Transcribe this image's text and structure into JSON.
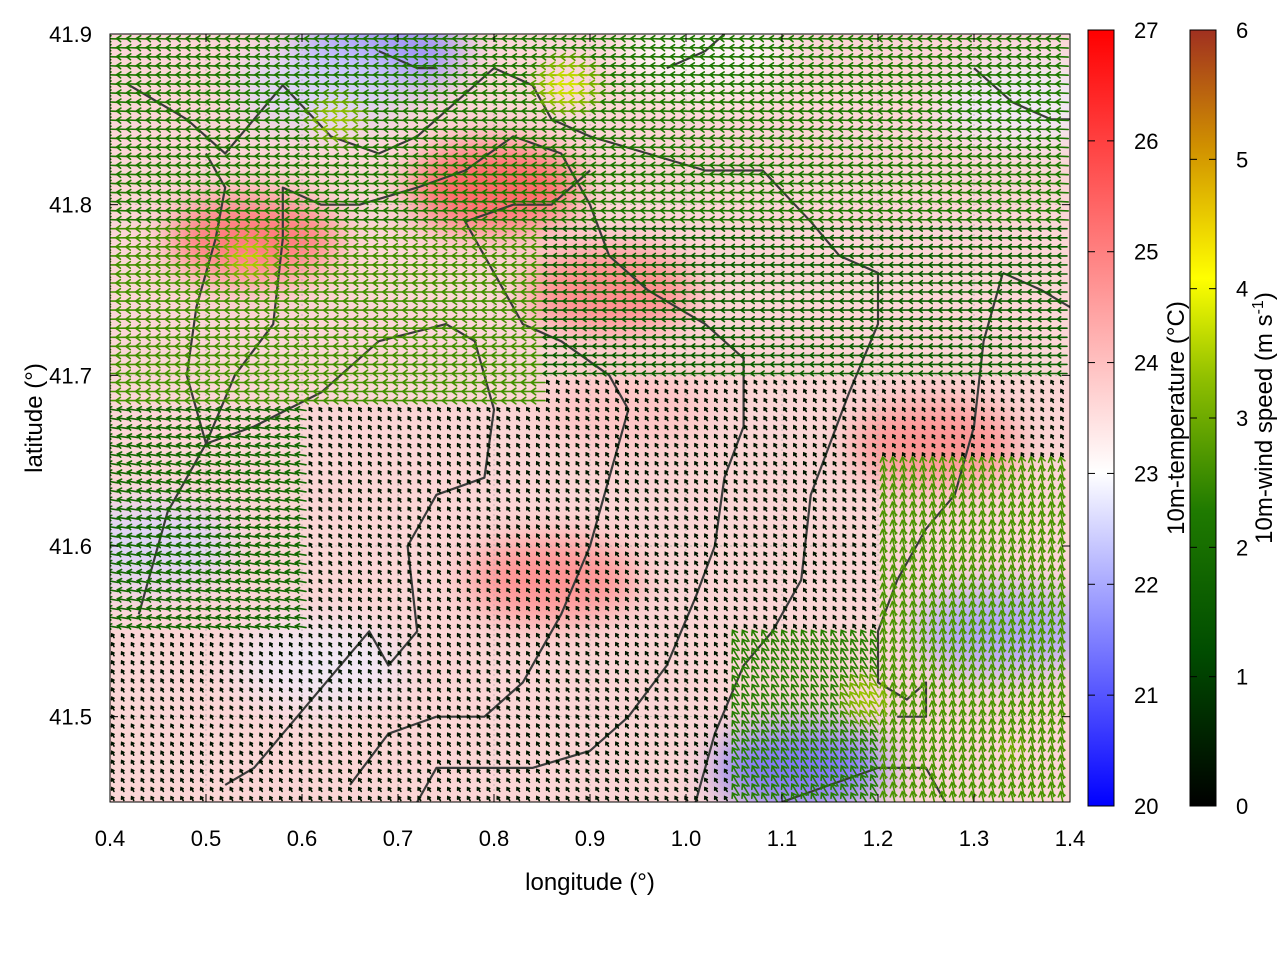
{
  "chart_data": {
    "type": "heatmap",
    "title": "",
    "xlabel": "longitude (°)",
    "ylabel": "latitude (°)",
    "xlim": [
      0.4,
      1.4
    ],
    "ylim": [
      41.45,
      41.9
    ],
    "xticks": [
      "0.4",
      "0.5",
      "0.6",
      "0.7",
      "0.8",
      "0.9",
      "1.0",
      "1.1",
      "1.2",
      "1.3",
      "1.4"
    ],
    "xtick_values": [
      0.4,
      0.5,
      0.6,
      0.7,
      0.8,
      0.9,
      1.0,
      1.1,
      1.2,
      1.3,
      1.4
    ],
    "yticks": [
      "41.5",
      "41.6",
      "41.7",
      "41.8",
      "41.9"
    ],
    "ytick_values": [
      41.5,
      41.6,
      41.7,
      41.8,
      41.9
    ],
    "grid": true,
    "temperature_colorbar": {
      "label": "10m-temperature (°C)",
      "range": [
        20,
        27
      ],
      "ticks": [
        "20",
        "21",
        "22",
        "23",
        "24",
        "25",
        "26",
        "27"
      ],
      "tick_values": [
        20,
        21,
        22,
        23,
        24,
        25,
        26,
        27
      ],
      "colors": [
        "#0000ff",
        "#ffffff",
        "#ff0000"
      ]
    },
    "wind_colorbar": {
      "label_main": "10m-wind speed (m s",
      "label_sup": "-1",
      "label_end": ")",
      "range": [
        0,
        6
      ],
      "ticks": [
        "0",
        "1",
        "2",
        "3",
        "4",
        "5",
        "6"
      ],
      "tick_values": [
        0,
        1,
        2,
        3,
        4,
        5,
        6
      ],
      "colors": [
        "#000000",
        "#004d00",
        "#2e8b00",
        "#7fbf00",
        "#ffff00",
        "#d4a000",
        "#a03020"
      ]
    },
    "temperature_field_anomalies": [
      {
        "lon": 0.68,
        "lat": 41.89,
        "temp": 21.5
      },
      {
        "lon": 0.62,
        "lat": 41.87,
        "temp": 22.5
      },
      {
        "lon": 0.44,
        "lat": 41.6,
        "temp": 22.5
      },
      {
        "lon": 0.62,
        "lat": 41.53,
        "temp": 22.8
      },
      {
        "lon": 0.8,
        "lat": 41.81,
        "temp": 26.0
      },
      {
        "lon": 0.55,
        "lat": 41.78,
        "temp": 25.5
      },
      {
        "lon": 0.92,
        "lat": 41.75,
        "temp": 25.2
      },
      {
        "lon": 0.86,
        "lat": 41.58,
        "temp": 25.0
      },
      {
        "lon": 1.12,
        "lat": 41.47,
        "temp": 21.0
      },
      {
        "lon": 1.33,
        "lat": 41.55,
        "temp": 21.8
      },
      {
        "lon": 1.35,
        "lat": 41.86,
        "temp": 22.8
      },
      {
        "lon": 1.02,
        "lat": 41.89,
        "temp": 23.0
      },
      {
        "lon": 0.94,
        "lat": 41.68,
        "temp": 24.0
      },
      {
        "lon": 1.26,
        "lat": 41.66,
        "temp": 25.0
      }
    ],
    "wind_regions": [
      {
        "lon_min": 0.4,
        "lon_max": 1.4,
        "lat_min": 41.79,
        "lat_max": 41.9,
        "u": -2.2,
        "v": 0.1
      },
      {
        "lon_min": 0.4,
        "lon_max": 0.85,
        "lat_min": 41.68,
        "lat_max": 41.79,
        "u": -2.6,
        "v": 0.0
      },
      {
        "lon_min": 0.85,
        "lon_max": 1.4,
        "lat_min": 41.7,
        "lat_max": 41.79,
        "u": -1.6,
        "v": 0.0
      },
      {
        "lon_min": 0.4,
        "lon_max": 0.6,
        "lat_min": 41.55,
        "lat_max": 41.68,
        "u": -1.8,
        "v": 0.3
      },
      {
        "lon_min": 1.2,
        "lon_max": 1.4,
        "lat_min": 41.45,
        "lat_max": 41.65,
        "u": -0.6,
        "v": 2.6
      },
      {
        "lon_min": 1.05,
        "lon_max": 1.2,
        "lat_min": 41.45,
        "lat_max": 41.55,
        "u": -1.2,
        "v": 2.0
      },
      {
        "lon_min": 0.6,
        "lon_max": 1.2,
        "lat_min": 41.45,
        "lat_max": 41.68,
        "u": -0.2,
        "v": 0.3
      }
    ],
    "wind_maxima": [
      {
        "lon": 0.55,
        "lat": 41.77,
        "speed": 3.6
      },
      {
        "lon": 0.64,
        "lat": 41.85,
        "speed": 3.4
      },
      {
        "lon": 0.88,
        "lat": 41.87,
        "speed": 3.8
      },
      {
        "lon": 1.19,
        "lat": 41.51,
        "speed": 3.4
      },
      {
        "lon": 1.34,
        "lat": 41.48,
        "speed": 3.0
      }
    ],
    "contours": [
      [
        [
          0.42,
          41.87
        ],
        [
          0.48,
          41.85
        ],
        [
          0.52,
          41.83
        ],
        [
          0.55,
          41.85
        ],
        [
          0.58,
          41.87
        ],
        [
          0.63,
          41.84
        ],
        [
          0.68,
          41.83
        ],
        [
          0.72,
          41.84
        ],
        [
          0.76,
          41.86
        ],
        [
          0.8,
          41.88
        ],
        [
          0.84,
          41.87
        ],
        [
          0.86,
          41.85
        ],
        [
          0.9,
          41.84
        ],
        [
          0.96,
          41.83
        ],
        [
          1.02,
          41.82
        ],
        [
          1.08,
          41.82
        ],
        [
          1.13,
          41.79
        ],
        [
          1.16,
          41.77
        ],
        [
          1.2,
          41.76
        ],
        [
          1.2,
          41.73
        ],
        [
          1.17,
          41.69
        ],
        [
          1.15,
          41.66
        ],
        [
          1.13,
          41.63
        ],
        [
          1.12,
          41.58
        ],
        [
          1.09,
          41.55
        ],
        [
          1.06,
          41.53
        ],
        [
          1.03,
          41.49
        ],
        [
          1.01,
          41.45
        ]
      ],
      [
        [
          0.5,
          41.83
        ],
        [
          0.52,
          41.81
        ],
        [
          0.51,
          41.78
        ],
        [
          0.49,
          41.74
        ],
        [
          0.48,
          41.7
        ],
        [
          0.5,
          41.66
        ],
        [
          0.53,
          41.7
        ],
        [
          0.57,
          41.73
        ],
        [
          0.58,
          41.78
        ],
        [
          0.58,
          41.81
        ],
        [
          0.62,
          41.8
        ],
        [
          0.66,
          41.8
        ],
        [
          0.72,
          41.81
        ],
        [
          0.77,
          41.82
        ],
        [
          0.82,
          41.84
        ],
        [
          0.87,
          41.83
        ],
        [
          0.9,
          41.8
        ],
        [
          0.92,
          41.77
        ],
        [
          0.96,
          41.75
        ],
        [
          1.02,
          41.73
        ],
        [
          1.06,
          41.71
        ],
        [
          1.06,
          41.67
        ],
        [
          1.04,
          41.64
        ],
        [
          1.03,
          41.6
        ],
        [
          1.01,
          41.57
        ],
        [
          0.98,
          41.53
        ],
        [
          0.94,
          41.5
        ],
        [
          0.9,
          41.48
        ],
        [
          0.84,
          41.47
        ],
        [
          0.78,
          41.47
        ],
        [
          0.74,
          41.47
        ],
        [
          0.72,
          41.45
        ]
      ],
      [
        [
          0.43,
          41.56
        ],
        [
          0.46,
          41.62
        ],
        [
          0.5,
          41.66
        ],
        [
          0.55,
          41.67
        ],
        [
          0.62,
          41.69
        ],
        [
          0.68,
          41.72
        ],
        [
          0.75,
          41.73
        ],
        [
          0.78,
          41.72
        ],
        [
          0.8,
          41.68
        ],
        [
          0.79,
          41.64
        ],
        [
          0.74,
          41.63
        ],
        [
          0.71,
          41.6
        ],
        [
          0.72,
          41.55
        ],
        [
          0.69,
          41.53
        ],
        [
          0.67,
          41.55
        ],
        [
          0.61,
          41.51
        ],
        [
          0.58,
          41.49
        ],
        [
          0.55,
          41.47
        ],
        [
          0.52,
          41.46
        ]
      ],
      [
        [
          0.65,
          41.46
        ],
        [
          0.69,
          41.49
        ],
        [
          0.74,
          41.5
        ],
        [
          0.79,
          41.5
        ],
        [
          0.83,
          41.52
        ],
        [
          0.87,
          41.56
        ],
        [
          0.9,
          41.6
        ],
        [
          0.92,
          41.64
        ],
        [
          0.94,
          41.68
        ],
        [
          0.92,
          41.7
        ],
        [
          0.87,
          41.72
        ],
        [
          0.83,
          41.73
        ],
        [
          0.8,
          41.76
        ],
        [
          0.77,
          41.79
        ],
        [
          0.82,
          41.8
        ],
        [
          0.86,
          41.8
        ],
        [
          0.9,
          41.82
        ]
      ],
      [
        [
          1.33,
          41.76
        ],
        [
          1.37,
          41.75
        ],
        [
          1.4,
          41.74
        ]
      ],
      [
        [
          1.33,
          41.76
        ],
        [
          1.31,
          41.72
        ],
        [
          1.3,
          41.67
        ],
        [
          1.28,
          41.63
        ],
        [
          1.25,
          41.61
        ],
        [
          1.22,
          41.58
        ],
        [
          1.2,
          41.55
        ],
        [
          1.2,
          41.52
        ],
        [
          1.23,
          41.51
        ],
        [
          1.25,
          41.52
        ],
        [
          1.25,
          41.5
        ],
        [
          1.22,
          41.5
        ]
      ],
      [
        [
          1.1,
          41.45
        ],
        [
          1.15,
          41.46
        ],
        [
          1.2,
          41.47
        ],
        [
          1.25,
          41.47
        ],
        [
          1.27,
          41.45
        ]
      ],
      [
        [
          0.68,
          41.89
        ],
        [
          0.72,
          41.88
        ],
        [
          0.74,
          41.88
        ]
      ],
      [
        [
          0.98,
          41.88
        ],
        [
          1.02,
          41.89
        ],
        [
          1.04,
          41.9
        ]
      ],
      [
        [
          1.3,
          41.88
        ],
        [
          1.34,
          41.86
        ],
        [
          1.38,
          41.85
        ],
        [
          1.4,
          41.85
        ]
      ]
    ]
  }
}
